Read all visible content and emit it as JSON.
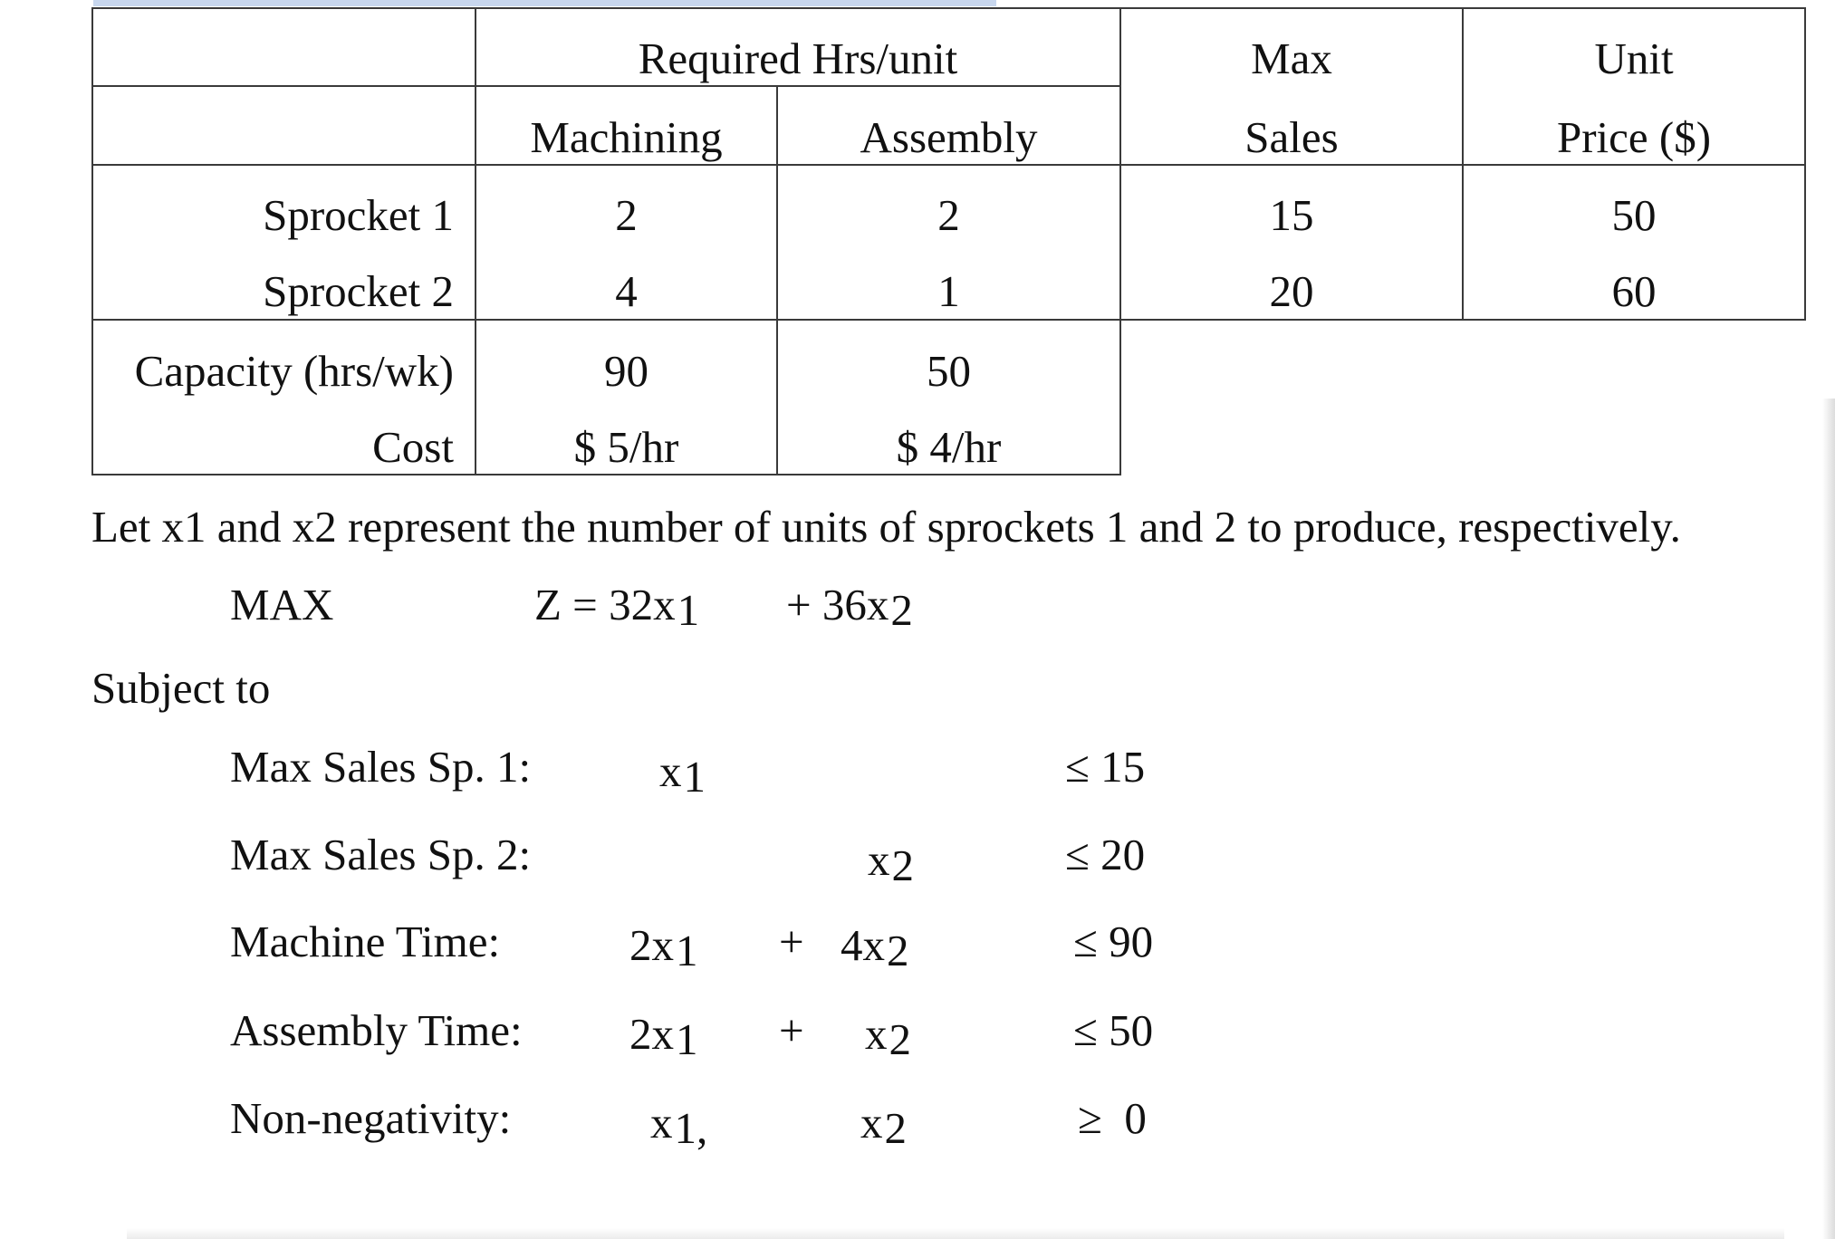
{
  "table": {
    "header1": {
      "required_hrs": "Required   Hrs/unit",
      "max": "Max",
      "unit": "Unit"
    },
    "header2": {
      "machining": "Machining",
      "assembly": "Assembly",
      "sales": "Sales",
      "price": "Price ($)"
    },
    "rows": [
      {
        "label": "Sprocket 1",
        "machining": "2",
        "assembly": "2",
        "max_sales": "15",
        "price": "50"
      },
      {
        "label": "Sprocket 2",
        "machining": "4",
        "assembly": "1",
        "max_sales": "20",
        "price": "60"
      }
    ],
    "capacity": {
      "label": "Capacity (hrs/wk)",
      "machining": "90",
      "assembly": "50"
    },
    "cost": {
      "label": "Cost",
      "machining": "$ 5/hr",
      "assembly": "$ 4/hr"
    }
  },
  "text": {
    "intro": "Let x1 and x2 represent the number of units of sprockets 1 and 2 to produce, respectively.",
    "objective": {
      "label": "MAX",
      "z": "Z = 32x",
      "z_sub": "1",
      "plus": "+ 36x",
      "plus_sub": "2"
    },
    "subject_to": "Subject to"
  },
  "constraints": [
    {
      "label": "Max Sales Sp. 1:",
      "t1": "x",
      "t1_sub": "1",
      "op": "",
      "t2": "",
      "t2_sub": "",
      "rhs": "≤ 15"
    },
    {
      "label": "Max Sales Sp. 2:",
      "t1": "",
      "t1_sub": "",
      "op": "",
      "t2": "x",
      "t2_sub": "2",
      "rhs": "≤ 20"
    },
    {
      "label": "Machine Time:",
      "t1": "2x",
      "t1_sub": "1",
      "op": "+",
      "t2": "4x",
      "t2_sub": "2",
      "rhs": "≤ 90"
    },
    {
      "label": "Assembly Time:",
      "t1": "2x",
      "t1_sub": "1",
      "op": "+",
      "t2": "x",
      "t2_sub": "2",
      "rhs": "≤ 50"
    },
    {
      "label": "Non-negativity:",
      "t1": "x",
      "t1_sub": "1,",
      "op": "",
      "t2": "x",
      "t2_sub": "2",
      "rhs": "≥  0"
    }
  ]
}
